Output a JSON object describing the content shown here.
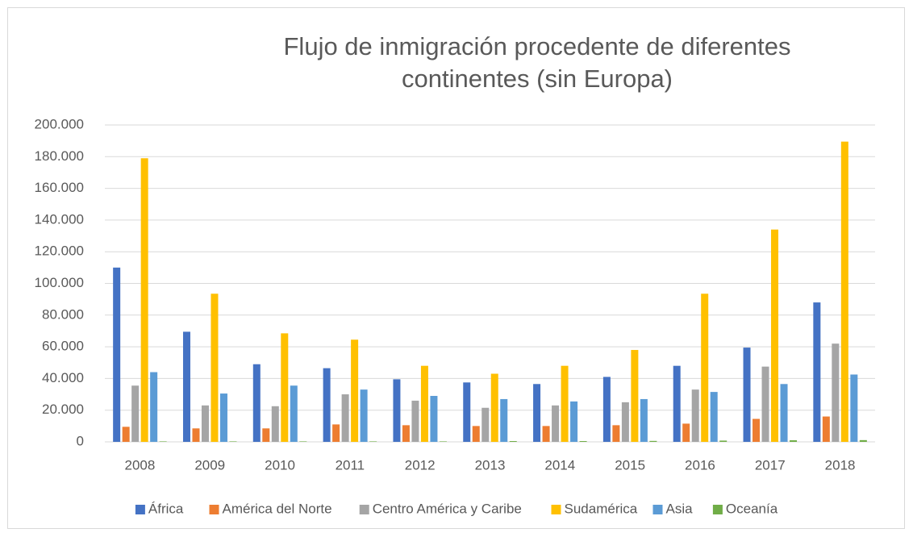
{
  "chart_data": {
    "type": "bar",
    "title": "Flujo de inmigración procedente de diferentes continentes (sin Europa)",
    "categories": [
      "2008",
      "2009",
      "2010",
      "2011",
      "2012",
      "2013",
      "2014",
      "2015",
      "2016",
      "2017",
      "2018"
    ],
    "series": [
      {
        "name": "África",
        "color": "#4472c4",
        "values": [
          110000,
          69500,
          49000,
          46500,
          39500,
          37500,
          36500,
          41000,
          48000,
          59500,
          88000
        ]
      },
      {
        "name": "América del Norte",
        "color": "#ed7d31",
        "values": [
          9500,
          8500,
          8500,
          11000,
          10500,
          10000,
          10000,
          10500,
          11500,
          14500,
          16000
        ]
      },
      {
        "name": "Centro América y Caribe",
        "color": "#a5a5a5",
        "values": [
          35500,
          23000,
          22500,
          30000,
          26000,
          21500,
          23000,
          25000,
          33000,
          47500,
          62000
        ]
      },
      {
        "name": "Sudamérica",
        "color": "#ffc000",
        "values": [
          179000,
          93500,
          68500,
          64500,
          48000,
          43000,
          48000,
          58000,
          93500,
          134000,
          189500
        ]
      },
      {
        "name": "Asia",
        "color": "#5b9bd5",
        "values": [
          44000,
          30500,
          35500,
          33000,
          29000,
          27000,
          25500,
          27000,
          31500,
          36500,
          42500
        ]
      },
      {
        "name": "Oceanía",
        "color": "#70ad47",
        "values": [
          300,
          300,
          300,
          300,
          300,
          500,
          500,
          600,
          800,
          1000,
          1100
        ]
      }
    ],
    "ylim": [
      0,
      200000
    ],
    "yticks": [
      0,
      {
        "value": 20000,
        "label": "20.000"
      },
      {
        "value": 40000,
        "label": "40.000"
      },
      {
        "value": 60000,
        "label": "60.000"
      },
      {
        "value": 80000,
        "label": "80.000"
      },
      {
        "value": 100000,
        "label": "100.000"
      },
      {
        "value": 120000,
        "label": "120.000"
      },
      {
        "value": 140000,
        "label": "140.000"
      },
      {
        "value": 160000,
        "label": "160.000"
      },
      {
        "value": 180000,
        "label": "180.000"
      },
      {
        "value": 200000,
        "label": "200.000"
      }
    ],
    "grid": true,
    "legend": "bottom"
  }
}
